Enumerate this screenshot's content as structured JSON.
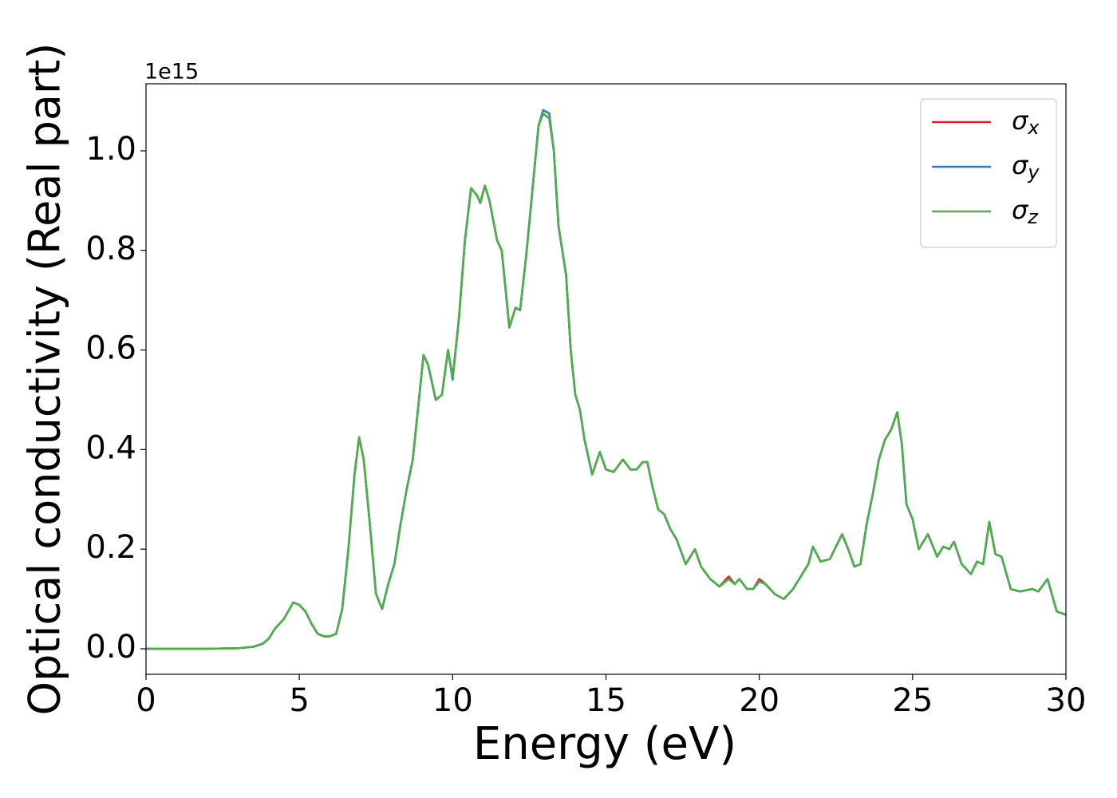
{
  "chart_data": {
    "type": "line",
    "xlabel": "Energy (eV)",
    "ylabel": "Optical conductivity (Real part)",
    "y_offset_text": "1e15",
    "x": [
      0,
      1,
      2,
      3,
      3.5,
      3.8,
      4,
      4.2,
      4.5,
      4.8,
      5,
      5.2,
      5.4,
      5.6,
      5.8,
      6,
      6.2,
      6.4,
      6.6,
      6.8,
      6.95,
      7.1,
      7.3,
      7.5,
      7.7,
      7.9,
      8.1,
      8.3,
      8.5,
      8.7,
      8.9,
      9.05,
      9.2,
      9.45,
      9.65,
      9.85,
      10,
      10.2,
      10.4,
      10.6,
      10.8,
      10.9,
      11.05,
      11.2,
      11.45,
      11.6,
      11.85,
      12.05,
      12.2,
      12.4,
      12.6,
      12.8,
      12.95,
      13.15,
      13.3,
      13.45,
      13.7,
      13.85,
      14,
      14.15,
      14.3,
      14.55,
      14.8,
      15,
      15.25,
      15.55,
      15.8,
      16,
      16.2,
      16.35,
      16.5,
      16.7,
      16.9,
      17.1,
      17.3,
      17.6,
      17.9,
      18.1,
      18.4,
      18.7,
      19,
      19.2,
      19.35,
      19.6,
      19.8,
      20,
      20.2,
      20.5,
      20.8,
      21.1,
      21.4,
      21.6,
      21.75,
      22,
      22.3,
      22.7,
      22.9,
      23.1,
      23.3,
      23.5,
      23.7,
      23.9,
      24.1,
      24.3,
      24.5,
      24.65,
      24.8,
      25,
      25.2,
      25.5,
      25.8,
      26,
      26.2,
      26.35,
      26.6,
      26.9,
      27.1,
      27.3,
      27.5,
      27.7,
      27.9,
      28.2,
      28.5,
      28.9,
      29.1,
      29.4,
      29.7,
      30
    ],
    "series": [
      {
        "name": "σx",
        "color": "#d62728",
        "values": [
          0,
          0,
          0,
          0.001,
          0.004,
          0.01,
          0.02,
          0.04,
          0.06,
          0.093,
          0.088,
          0.075,
          0.05,
          0.03,
          0.025,
          0.025,
          0.03,
          0.08,
          0.2,
          0.35,
          0.425,
          0.38,
          0.25,
          0.11,
          0.08,
          0.13,
          0.17,
          0.25,
          0.32,
          0.38,
          0.5,
          0.59,
          0.57,
          0.5,
          0.51,
          0.6,
          0.545,
          0.66,
          0.82,
          0.925,
          0.91,
          0.895,
          0.93,
          0.9,
          0.82,
          0.8,
          0.645,
          0.685,
          0.68,
          0.79,
          0.92,
          1.05,
          1.075,
          1.065,
          1.0,
          0.85,
          0.75,
          0.6,
          0.51,
          0.48,
          0.42,
          0.35,
          0.395,
          0.36,
          0.355,
          0.38,
          0.36,
          0.36,
          0.375,
          0.375,
          0.33,
          0.28,
          0.27,
          0.24,
          0.22,
          0.17,
          0.2,
          0.165,
          0.14,
          0.125,
          0.145,
          0.13,
          0.14,
          0.12,
          0.12,
          0.14,
          0.13,
          0.11,
          0.1,
          0.12,
          0.15,
          0.17,
          0.205,
          0.175,
          0.18,
          0.23,
          0.2,
          0.165,
          0.17,
          0.25,
          0.31,
          0.38,
          0.42,
          0.44,
          0.475,
          0.41,
          0.29,
          0.26,
          0.2,
          0.23,
          0.185,
          0.205,
          0.2,
          0.215,
          0.17,
          0.15,
          0.175,
          0.17,
          0.255,
          0.19,
          0.185,
          0.12,
          0.115,
          0.12,
          0.115,
          0.14,
          0.075,
          0.068
        ]
      },
      {
        "name": "σy",
        "color": "#377eb8",
        "values": [
          0,
          0,
          0,
          0.001,
          0.004,
          0.01,
          0.02,
          0.04,
          0.06,
          0.093,
          0.088,
          0.075,
          0.05,
          0.03,
          0.025,
          0.025,
          0.03,
          0.08,
          0.2,
          0.35,
          0.425,
          0.38,
          0.25,
          0.11,
          0.08,
          0.13,
          0.17,
          0.25,
          0.32,
          0.38,
          0.5,
          0.59,
          0.57,
          0.5,
          0.51,
          0.6,
          0.54,
          0.66,
          0.82,
          0.925,
          0.91,
          0.895,
          0.93,
          0.9,
          0.82,
          0.8,
          0.645,
          0.685,
          0.68,
          0.79,
          0.92,
          1.05,
          1.082,
          1.075,
          1.0,
          0.85,
          0.75,
          0.6,
          0.51,
          0.48,
          0.42,
          0.35,
          0.395,
          0.36,
          0.355,
          0.38,
          0.36,
          0.36,
          0.375,
          0.375,
          0.33,
          0.28,
          0.27,
          0.24,
          0.22,
          0.17,
          0.2,
          0.165,
          0.14,
          0.125,
          0.14,
          0.13,
          0.14,
          0.12,
          0.12,
          0.135,
          0.13,
          0.11,
          0.1,
          0.12,
          0.15,
          0.17,
          0.205,
          0.175,
          0.18,
          0.23,
          0.2,
          0.165,
          0.17,
          0.25,
          0.31,
          0.38,
          0.42,
          0.44,
          0.475,
          0.41,
          0.29,
          0.26,
          0.2,
          0.23,
          0.185,
          0.205,
          0.2,
          0.215,
          0.17,
          0.15,
          0.175,
          0.17,
          0.255,
          0.19,
          0.185,
          0.12,
          0.115,
          0.12,
          0.115,
          0.14,
          0.075,
          0.068
        ]
      },
      {
        "name": "σz",
        "color": "#4daf4a",
        "values": [
          0,
          0,
          0,
          0.001,
          0.004,
          0.01,
          0.02,
          0.04,
          0.06,
          0.093,
          0.088,
          0.075,
          0.05,
          0.03,
          0.025,
          0.025,
          0.03,
          0.08,
          0.2,
          0.35,
          0.425,
          0.38,
          0.25,
          0.11,
          0.08,
          0.13,
          0.17,
          0.25,
          0.32,
          0.38,
          0.5,
          0.59,
          0.57,
          0.5,
          0.51,
          0.6,
          0.545,
          0.66,
          0.82,
          0.925,
          0.91,
          0.895,
          0.93,
          0.9,
          0.82,
          0.8,
          0.645,
          0.685,
          0.68,
          0.79,
          0.92,
          1.05,
          1.075,
          1.065,
          1.0,
          0.85,
          0.75,
          0.6,
          0.51,
          0.48,
          0.42,
          0.35,
          0.395,
          0.36,
          0.355,
          0.38,
          0.36,
          0.36,
          0.375,
          0.375,
          0.33,
          0.28,
          0.27,
          0.24,
          0.22,
          0.17,
          0.2,
          0.165,
          0.14,
          0.125,
          0.14,
          0.13,
          0.14,
          0.12,
          0.12,
          0.135,
          0.13,
          0.11,
          0.1,
          0.12,
          0.15,
          0.17,
          0.205,
          0.175,
          0.18,
          0.23,
          0.2,
          0.165,
          0.17,
          0.25,
          0.31,
          0.38,
          0.42,
          0.44,
          0.475,
          0.41,
          0.29,
          0.26,
          0.2,
          0.23,
          0.185,
          0.205,
          0.2,
          0.215,
          0.17,
          0.15,
          0.175,
          0.17,
          0.255,
          0.19,
          0.185,
          0.12,
          0.115,
          0.12,
          0.115,
          0.14,
          0.075,
          0.068
        ]
      }
    ],
    "xlim": [
      0,
      30
    ],
    "xticks": [
      0,
      5,
      10,
      15,
      20,
      25,
      30
    ],
    "ylim": [
      -0.0513,
      1.1346
    ],
    "yticks": [
      {
        "value": 0,
        "label": "0.0"
      },
      0.2,
      0.4,
      0.6,
      0.8,
      {
        "value": 1,
        "label": "1.0"
      }
    ],
    "grid": false,
    "legend": "upper right"
  }
}
